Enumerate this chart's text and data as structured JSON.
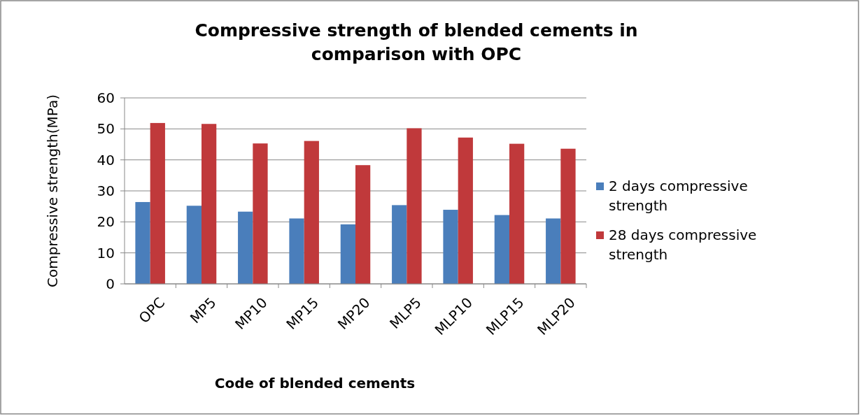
{
  "chart_data": {
    "type": "bar",
    "title": "Compressive strength of blended cements in comparison with OPC",
    "xlabel": "Code of blended cements",
    "ylabel": "Compressive strength(MPa)",
    "categories": [
      "OPC",
      "MP5",
      "MP10",
      "MP15",
      "MP20",
      "MLP5",
      "MLP10",
      "MLP15",
      "MLP20"
    ],
    "series": [
      {
        "name": "2 days compressive strength",
        "color": "#4a7ebb",
        "values": [
          26.4,
          25.2,
          23.3,
          21.1,
          19.2,
          25.4,
          23.9,
          22.2,
          21.1
        ]
      },
      {
        "name": "28 days compressive strength",
        "color": "#c0393b",
        "values": [
          51.9,
          51.6,
          45.3,
          46.1,
          38.3,
          50.2,
          47.2,
          45.2,
          43.6
        ]
      }
    ],
    "ylim": [
      0,
      60
    ],
    "yticks": [
      0,
      10,
      20,
      30,
      40,
      50,
      60
    ],
    "grid": "y",
    "legend": "right"
  }
}
